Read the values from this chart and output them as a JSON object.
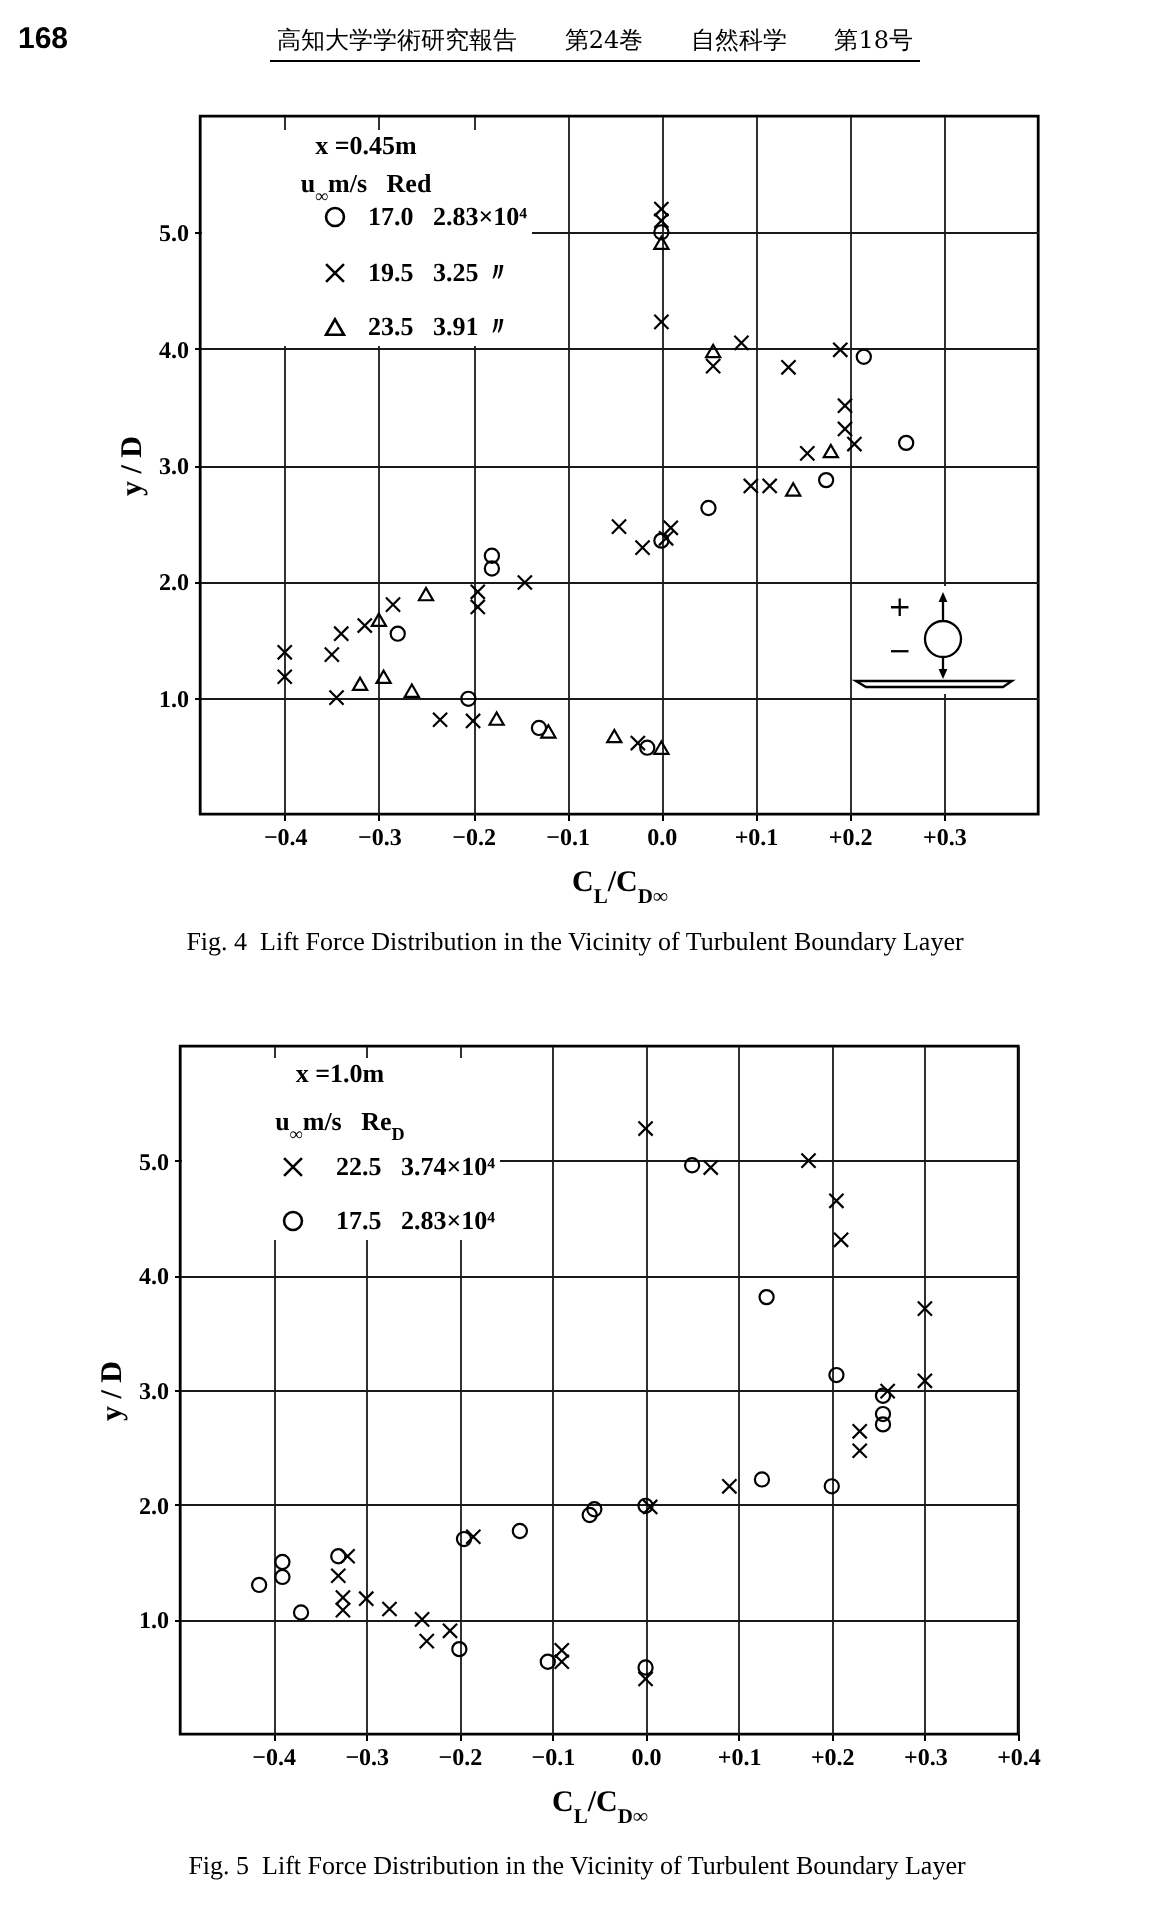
{
  "chart_data": [
    {
      "type": "scatter",
      "title": "Fig. 4  Lift Force Distribution in the Vicinity of Turbulent Boundary Layer",
      "xlabel": "C$_{L}$/C$_{D∞}$",
      "ylabel": "y / D",
      "legend_title": "x =0.45m\nu$_{∞}$m/s   Red",
      "annotations": [
        "168",
        "高知大学学術研究報告 第24巻 自然科学 第18号",
        "+",
        "−"
      ],
      "series": [
        {
          "name": "17.0   2.83×10⁴",
          "color": "#000000",
          "marker": "circle",
          "x": [
            -0.28,
            -0.205,
            -0.18,
            -0.18,
            -0.13,
            0.0,
            0.215,
            0.26,
            0.175,
            0.05,
            0.0,
            -0.015
          ],
          "values": [
            1.55,
            0.99,
            2.22,
            2.11,
            0.74,
            5.0,
            3.93,
            3.19,
            2.87,
            2.63,
            2.35,
            0.57
          ]
        },
        {
          "name": "19.5   3.25 〃",
          "color": "#000000",
          "marker": "cross",
          "x": [
            -0.4,
            -0.4,
            -0.35,
            -0.34,
            -0.315,
            -0.345,
            -0.285,
            -0.235,
            -0.2,
            -0.195,
            -0.195,
            -0.145,
            0.0,
            0.0,
            0.0,
            0.055,
            0.085,
            0.135,
            0.19,
            0.195,
            0.195,
            0.205,
            0.155,
            0.095,
            0.115,
            -0.045,
            -0.02,
            0.005,
            0.01,
            -0.025
          ],
          "values": [
            1.39,
            1.18,
            1.37,
            1.55,
            1.62,
            1.0,
            1.8,
            0.81,
            0.8,
            1.91,
            1.78,
            1.99,
            5.2,
            5.1,
            4.23,
            3.85,
            4.05,
            3.84,
            3.99,
            3.51,
            3.31,
            3.18,
            3.1,
            2.82,
            2.82,
            2.47,
            2.29,
            2.37,
            2.46,
            0.61
          ]
        },
        {
          "name": "23.5   3.91 〃",
          "color": "#000000",
          "marker": "triangle",
          "x": [
            -0.32,
            -0.295,
            -0.3,
            -0.265,
            -0.25,
            -0.175,
            -0.12,
            0.0,
            0.055,
            0.18,
            0.14,
            -0.05,
            0.0
          ],
          "values": [
            1.12,
            1.18,
            1.67,
            1.06,
            1.89,
            0.82,
            0.71,
            4.91,
            3.98,
            3.12,
            2.79,
            0.67,
            0.57
          ]
        }
      ],
      "xlim": [
        -0.49,
        0.4
      ],
      "ylim": [
        0,
        6
      ],
      "xticks": [
        {
          "value": -0.4,
          "label": "−0.4"
        },
        {
          "value": -0.3,
          "label": "−0.3"
        },
        {
          "value": -0.2,
          "label": "−0.2"
        },
        {
          "value": -0.1,
          "label": "−0.1"
        },
        {
          "value": 0,
          "label": "0.0"
        },
        {
          "value": 0.1,
          "label": "+0.1"
        },
        {
          "value": 0.2,
          "label": "+0.2"
        },
        {
          "value": 0.3,
          "label": "+0.3"
        }
      ],
      "yticks": [
        {
          "value": 1,
          "label": "1.0"
        },
        {
          "value": 2,
          "label": "2.0"
        },
        {
          "value": 3,
          "label": "3.0"
        },
        {
          "value": 4,
          "label": "4.0"
        },
        {
          "value": 5,
          "label": "5.0"
        }
      ],
      "grid": true,
      "legend": "top left"
    },
    {
      "type": "scatter",
      "title": "Fig. 5  Lift Force Distribution in the Vicinity of Turbulent Boundary Layer",
      "xlabel": "C$_{L}$/C$_{D∞}$",
      "ylabel": "y / D",
      "legend_title": "x =1.0m\nu$_{∞}$m/s   Re$_{D}$",
      "series": [
        {
          "name": "22.5   3.74×10⁴",
          "color": "#000000",
          "marker": "cross",
          "x": [
            -0.33,
            -0.32,
            -0.325,
            -0.325,
            -0.3,
            -0.275,
            -0.24,
            -0.235,
            -0.21,
            -0.185,
            -0.09,
            -0.09,
            0.005,
            0.0,
            0.07,
            0.0,
            0.175,
            0.205,
            0.21,
            0.3,
            0.3,
            0.26,
            0.23,
            0.23,
            0.09
          ],
          "values": [
            1.38,
            1.55,
            1.19,
            1.08,
            1.18,
            1.09,
            1.0,
            0.81,
            0.9,
            1.72,
            0.63,
            0.73,
            1.98,
            0.48,
            4.94,
            5.28,
            5.0,
            4.65,
            4.31,
            3.71,
            3.08,
            2.99,
            2.64,
            2.47,
            2.16
          ]
        },
        {
          "name": "17.5   2.83×10⁴",
          "color": "#000000",
          "marker": "circle",
          "x": [
            -0.415,
            -0.39,
            -0.39,
            -0.37,
            -0.33,
            -0.2,
            -0.195,
            -0.135,
            -0.105,
            -0.06,
            -0.055,
            0.0,
            0.0,
            0.05,
            0.13,
            0.205,
            0.255,
            0.255,
            0.255,
            0.2,
            0.125
          ],
          "values": [
            1.3,
            1.5,
            1.37,
            1.06,
            1.55,
            0.74,
            1.7,
            1.77,
            0.63,
            1.91,
            1.96,
            1.99,
            0.58,
            4.96,
            3.81,
            3.13,
            2.95,
            2.79,
            2.7,
            2.16,
            2.22
          ]
        }
      ],
      "xlim": [
        -0.5,
        0.4
      ],
      "ylim": [
        0,
        6
      ],
      "xticks": [
        {
          "value": -0.4,
          "label": "−0.4"
        },
        {
          "value": -0.3,
          "label": "−0.3"
        },
        {
          "value": -0.2,
          "label": "−0.2"
        },
        {
          "value": -0.1,
          "label": "−0.1"
        },
        {
          "value": 0,
          "label": "0.0"
        },
        {
          "value": 0.1,
          "label": "+0.1"
        },
        {
          "value": 0.2,
          "label": "+0.2"
        },
        {
          "value": 0.3,
          "label": "+0.3"
        },
        {
          "value": 0.4,
          "label": "+0.4"
        }
      ],
      "yticks": [
        {
          "value": 1,
          "label": "1.0"
        },
        {
          "value": 2,
          "label": "2.0"
        },
        {
          "value": 3,
          "label": "3.0"
        },
        {
          "value": 4,
          "label": "4.0"
        },
        {
          "value": 5,
          "label": "5.0"
        }
      ],
      "grid": true,
      "legend": "top left"
    }
  ]
}
